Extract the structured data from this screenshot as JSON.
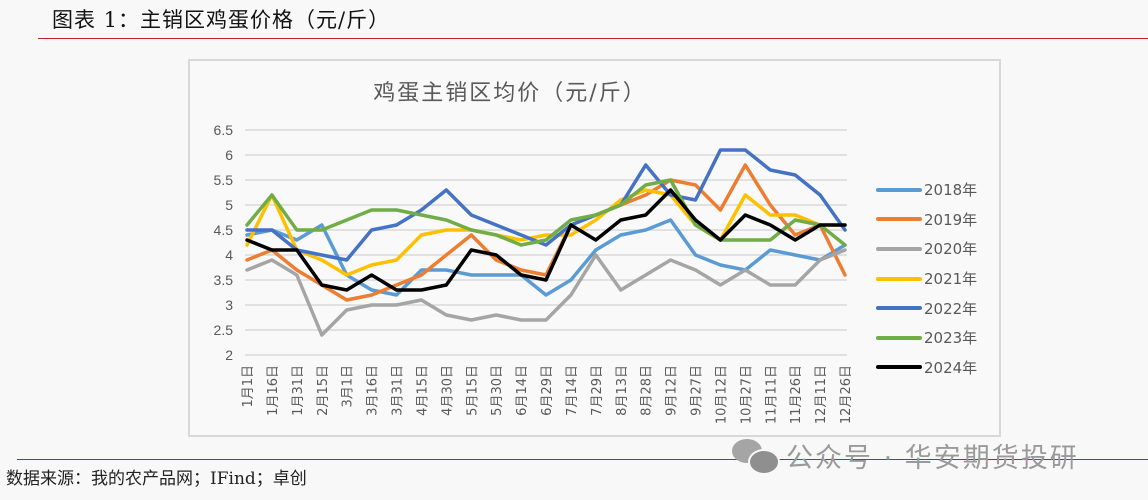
{
  "figure": {
    "title": "图表 1：主销区鸡蛋价格（元/斤）",
    "source": "数据来源：我的农产品网；IFind；卓创",
    "watermark": "公众号 · 华安期货投研"
  },
  "colors": {
    "rule": "#c0202a",
    "gridline": "#d9d9d9",
    "axis_text": "#595959"
  },
  "chart_data": {
    "type": "line",
    "title": "鸡蛋主销区均价（元/斤）",
    "xlabel": "",
    "ylabel": "",
    "ylim": [
      2,
      6.5
    ],
    "yticks": [
      "6.5",
      "6",
      "5.5",
      "5",
      "4.5",
      "4",
      "3.5",
      "3",
      "2.5",
      "2"
    ],
    "grid": true,
    "legend_position": "right",
    "categories": [
      "1月1日",
      "1月16日",
      "1月31日",
      "2月15日",
      "3月1日",
      "3月16日",
      "3月31日",
      "4月15日",
      "4月30日",
      "5月15日",
      "5月30日",
      "6月14日",
      "6月29日",
      "7月14日",
      "7月29日",
      "8月13日",
      "8月28日",
      "9月12日",
      "9月27日",
      "10月12日",
      "10月27日",
      "11月11日",
      "11月26日",
      "12月11日",
      "12月26日"
    ],
    "series": [
      {
        "name": "2018年",
        "color": "#5b9bd5",
        "values": [
          4.4,
          4.5,
          4.3,
          4.6,
          3.6,
          3.3,
          3.2,
          3.7,
          3.7,
          3.6,
          3.6,
          3.6,
          3.2,
          3.5,
          4.1,
          4.4,
          4.5,
          4.7,
          4.0,
          3.8,
          3.7,
          4.1,
          4.0,
          3.9,
          4.2
        ]
      },
      {
        "name": "2019年",
        "color": "#ed7d31",
        "values": [
          3.9,
          4.1,
          3.7,
          3.4,
          3.1,
          3.2,
          3.4,
          3.6,
          4.0,
          4.4,
          3.9,
          3.7,
          3.6,
          4.6,
          4.8,
          5.0,
          5.2,
          5.5,
          5.4,
          4.9,
          5.8,
          5.0,
          4.4,
          4.6,
          3.6
        ]
      },
      {
        "name": "2020年",
        "color": "#a5a5a5",
        "values": [
          3.7,
          3.9,
          3.6,
          2.4,
          2.9,
          3.0,
          3.0,
          3.1,
          2.8,
          2.7,
          2.8,
          2.7,
          2.7,
          3.2,
          4.0,
          3.3,
          3.6,
          3.9,
          3.7,
          3.4,
          3.7,
          3.4,
          3.4,
          3.9,
          4.1
        ]
      },
      {
        "name": "2021年",
        "color": "#ffc000",
        "values": [
          4.2,
          5.2,
          4.1,
          3.9,
          3.6,
          3.8,
          3.9,
          4.4,
          4.5,
          4.5,
          4.4,
          4.3,
          4.4,
          4.4,
          4.7,
          5.1,
          5.3,
          5.2,
          4.6,
          4.3,
          5.2,
          4.8,
          4.8,
          4.6,
          4.6
        ]
      },
      {
        "name": "2022年",
        "color": "#4472c4",
        "values": [
          4.5,
          4.5,
          4.1,
          4.0,
          3.9,
          4.5,
          4.6,
          4.9,
          5.3,
          4.8,
          4.6,
          4.4,
          4.2,
          4.6,
          4.8,
          5.0,
          5.8,
          5.2,
          5.1,
          6.1,
          6.1,
          5.7,
          5.6,
          5.2,
          4.5
        ]
      },
      {
        "name": "2023年",
        "color": "#70ad47",
        "values": [
          4.6,
          5.2,
          4.5,
          4.5,
          4.7,
          4.9,
          4.9,
          4.8,
          4.7,
          4.5,
          4.4,
          4.2,
          4.3,
          4.7,
          4.8,
          5.0,
          5.4,
          5.5,
          4.6,
          4.3,
          4.3,
          4.3,
          4.7,
          4.6,
          4.2
        ]
      },
      {
        "name": "2024年",
        "color": "#000000",
        "values": [
          4.3,
          4.1,
          4.1,
          3.4,
          3.3,
          3.6,
          3.3,
          3.3,
          3.4,
          4.1,
          4.0,
          3.6,
          3.5,
          4.6,
          4.3,
          4.7,
          4.8,
          5.3,
          4.7,
          4.3,
          4.8,
          4.6,
          4.3,
          4.6,
          4.6
        ]
      }
    ]
  }
}
